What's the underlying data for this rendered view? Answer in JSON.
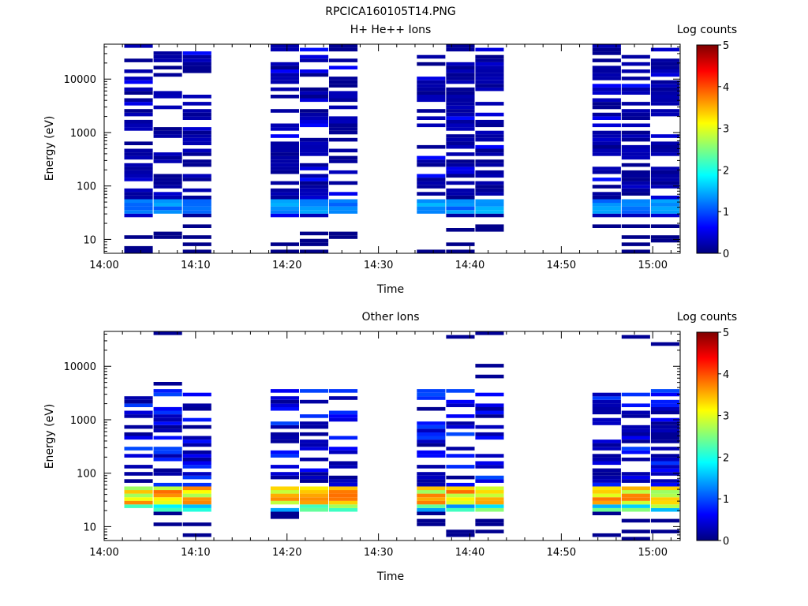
{
  "figure_title": "RPCICA160105T14.PNG",
  "chart_data": [
    {
      "type": "heatmap",
      "title": "H+ He++ Ions",
      "xlabel": "Time",
      "ylabel": "Energy (eV)",
      "x_ticks": [
        "14:00",
        "14:10",
        "14:20",
        "14:30",
        "14:40",
        "14:50",
        "15:00"
      ],
      "x_range_minutes": [
        0,
        63
      ],
      "y_scale": "log",
      "y_range": [
        5.5,
        45000
      ],
      "y_ticks": [
        "10",
        "100",
        "1000",
        "10000"
      ],
      "colorbar": {
        "label": "Log counts",
        "range": [
          0,
          5
        ],
        "ticks": [
          "0",
          "1",
          "2",
          "3",
          "4",
          "5"
        ]
      },
      "scan_groups_minutes": [
        [
          2.2,
          11.8
        ],
        [
          18.2,
          27.8
        ],
        [
          34.2,
          43.8
        ],
        [
          53.4,
          63
        ]
      ],
      "low_energy_peak_ev": [
        30,
        60
      ],
      "low_energy_peak_log_counts": 1.4
    },
    {
      "type": "heatmap",
      "title": "Other Ions",
      "xlabel": "Time",
      "ylabel": "Energy (eV)",
      "x_ticks": [
        "14:00",
        "14:10",
        "14:20",
        "14:30",
        "14:40",
        "14:50",
        "15:00"
      ],
      "x_range_minutes": [
        0,
        63
      ],
      "y_scale": "log",
      "y_range": [
        5.5,
        45000
      ],
      "y_ticks": [
        "10",
        "100",
        "1000",
        "10000"
      ],
      "colorbar": {
        "label": "Log counts",
        "range": [
          0,
          5
        ],
        "ticks": [
          "0",
          "1",
          "2",
          "3",
          "4",
          "5"
        ]
      },
      "scan_groups_minutes": [
        [
          2.2,
          11.8
        ],
        [
          18.2,
          27.8
        ],
        [
          34.2,
          43.8
        ],
        [
          53.4,
          63
        ]
      ],
      "low_energy_peak_ev": [
        25,
        55
      ],
      "low_energy_peak_log_counts": 3.5
    }
  ]
}
